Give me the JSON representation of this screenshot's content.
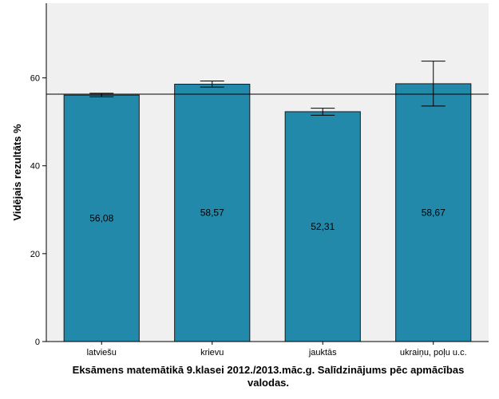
{
  "chart_data": {
    "type": "bar",
    "categories": [
      "latviešu",
      "krievu",
      "jauktās",
      "ukraiņu, poļu u.c."
    ],
    "values": [
      56.08,
      58.57,
      52.31,
      58.67
    ],
    "data_labels": [
      "56,08",
      "58,57",
      "52,31",
      "58,67"
    ],
    "error_bars": [
      {
        "low": 55.7,
        "high": 56.5
      },
      {
        "low": 57.9,
        "high": 59.3
      },
      {
        "low": 51.5,
        "high": 53.1
      },
      {
        "low": 53.6,
        "high": 63.8
      }
    ],
    "reference_line": 56.3,
    "ylabel": "Vidējais rezultāts %",
    "xlabel": "",
    "yticks": [
      0,
      20,
      40,
      60
    ],
    "ytick_labels": [
      "0",
      "20",
      "40",
      "60"
    ],
    "ylim": [
      0,
      77
    ],
    "grid": false,
    "title": "",
    "colors": {
      "bar": "#2389ab",
      "bar_edge": "#1a1a1a",
      "plot_bg": "#f0f0f0",
      "axis": "#000000"
    }
  },
  "caption": {
    "line1": "Eksāmens matemātikā 9.klasei 2012./2013.māc.g. Salīdzinājums pēc apmācības",
    "line2": "valodas."
  }
}
